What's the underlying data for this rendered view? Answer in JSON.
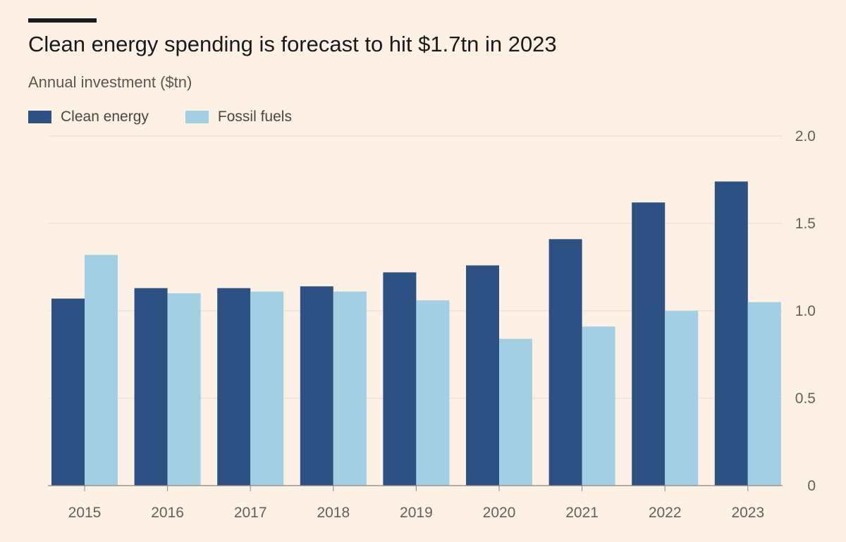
{
  "title": "Clean energy spending is forecast to hit $1.7tn in 2023",
  "subtitle": "Annual investment ($tn)",
  "colors": {
    "clean": "#2c5182",
    "fossil": "#a2cfe3",
    "grid": "#e8ddd3",
    "axis": "#8c857e",
    "background": "#fdf0e5"
  },
  "chart_data": {
    "type": "bar",
    "title": "Clean energy spending is forecast to hit $1.7tn in 2023",
    "ylabel": "Annual investment ($tn)",
    "xlabel": "",
    "categories": [
      "2015",
      "2016",
      "2017",
      "2018",
      "2019",
      "2020",
      "2021",
      "2022",
      "2023"
    ],
    "series": [
      {
        "name": "Clean energy",
        "values": [
          1.07,
          1.13,
          1.13,
          1.14,
          1.22,
          1.26,
          1.41,
          1.62,
          1.74
        ]
      },
      {
        "name": "Fossil fuels",
        "values": [
          1.32,
          1.1,
          1.11,
          1.11,
          1.06,
          0.84,
          0.91,
          1.0,
          1.05
        ]
      }
    ],
    "ylim": [
      0,
      2.0
    ],
    "yticks": [
      0,
      0.5,
      1.0,
      1.5,
      2.0
    ],
    "ytick_labels": [
      "0",
      "0.5",
      "1.0",
      "1.5",
      "2.0"
    ],
    "y_axis_side": "right",
    "grid": true,
    "legend_position": "top-left"
  }
}
